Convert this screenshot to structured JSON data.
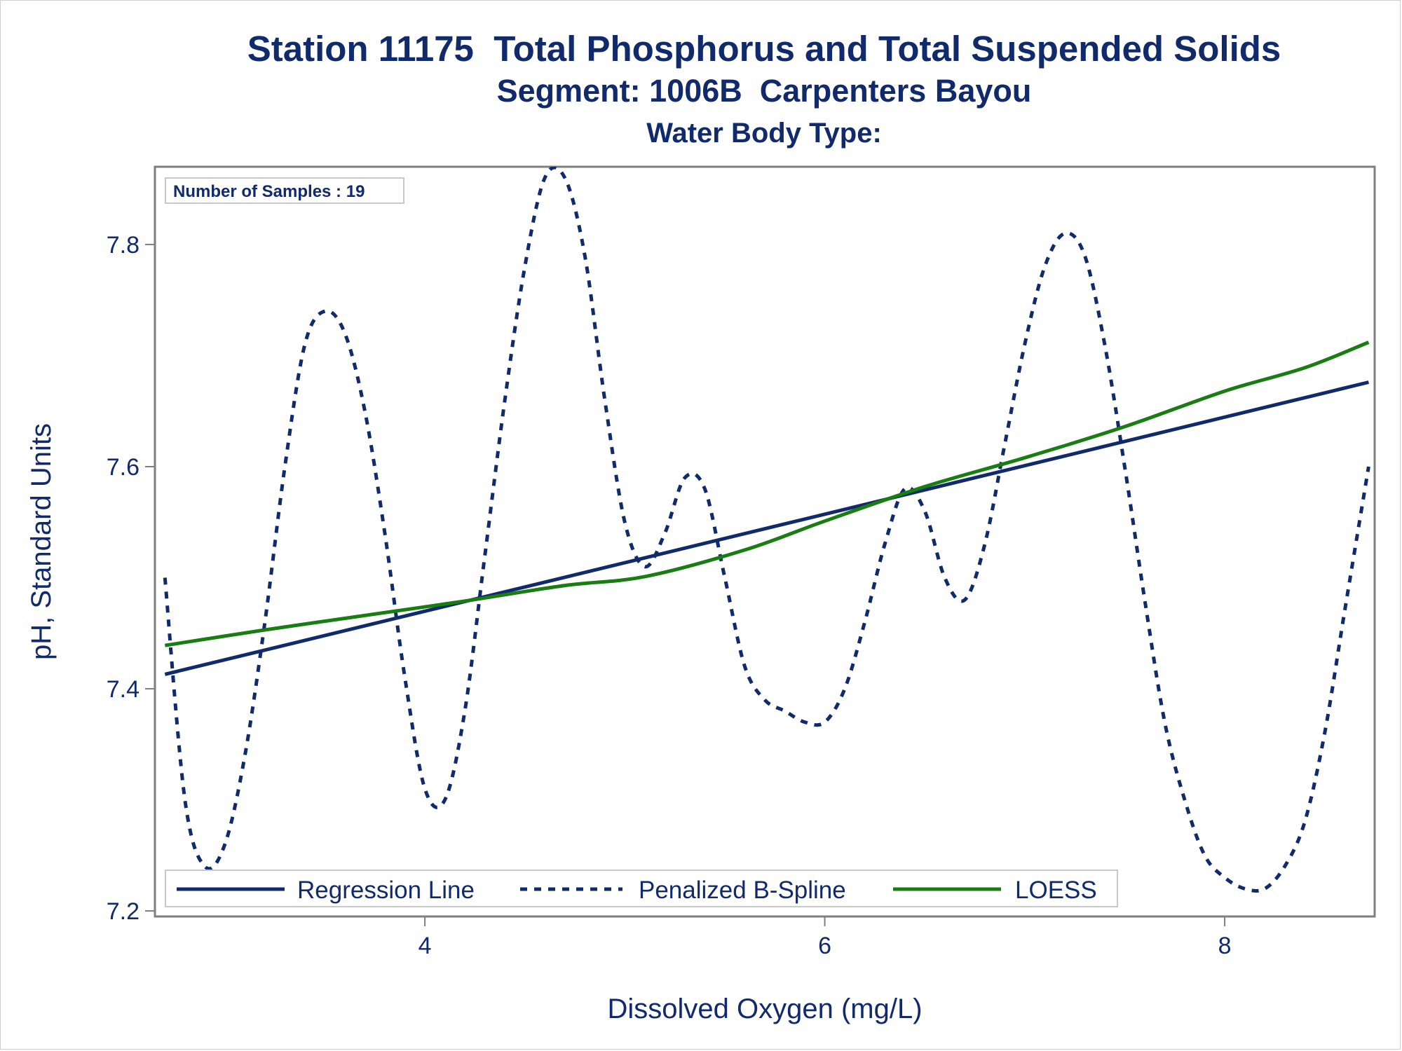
{
  "titles": {
    "line1": "Station 11175  Total Phosphorus and Total Suspended Solids",
    "line2": "Segment: 1006B  Carpenters Bayou",
    "line3": "Water Body Type:"
  },
  "inset": {
    "text": "Number of Samples : 19"
  },
  "colors": {
    "navy": "#112a6b",
    "green": "#1a7d12",
    "axis": "#7f7f7f"
  },
  "chart_data": {
    "type": "line",
    "xlabel": "Dissolved Oxygen (mg/L)",
    "ylabel": "pH, Standard Units",
    "xlim": [
      2.65,
      8.75
    ],
    "ylim": [
      7.195,
      7.87
    ],
    "x_ticks": [
      4,
      6,
      8
    ],
    "x_tick_labels": [
      "4",
      "6",
      "8"
    ],
    "y_ticks": [
      7.2,
      7.4,
      7.6,
      7.8
    ],
    "y_tick_labels": [
      "7.2",
      "7.4",
      "7.6",
      "7.8"
    ],
    "grid": false,
    "legend_position": "bottom-left inside",
    "series": [
      {
        "name": "Regression Line",
        "style": "solid",
        "color": "#112a6b",
        "points": [
          [
            2.7,
            7.413
          ],
          [
            8.72,
            7.676
          ]
        ]
      },
      {
        "name": "Penalized B-Spline",
        "style": "dashed",
        "color": "#112a6b",
        "points": [
          [
            2.7,
            7.5
          ],
          [
            2.8,
            7.3
          ],
          [
            2.9,
            7.24
          ],
          [
            3.0,
            7.26
          ],
          [
            3.1,
            7.34
          ],
          [
            3.2,
            7.46
          ],
          [
            3.3,
            7.6
          ],
          [
            3.4,
            7.71
          ],
          [
            3.5,
            7.74
          ],
          [
            3.6,
            7.72
          ],
          [
            3.7,
            7.65
          ],
          [
            3.8,
            7.54
          ],
          [
            3.9,
            7.41
          ],
          [
            4.0,
            7.31
          ],
          [
            4.1,
            7.3
          ],
          [
            4.2,
            7.38
          ],
          [
            4.3,
            7.52
          ],
          [
            4.4,
            7.66
          ],
          [
            4.5,
            7.78
          ],
          [
            4.6,
            7.86
          ],
          [
            4.7,
            7.86
          ],
          [
            4.8,
            7.79
          ],
          [
            4.9,
            7.66
          ],
          [
            5.0,
            7.55
          ],
          [
            5.1,
            7.51
          ],
          [
            5.2,
            7.54
          ],
          [
            5.3,
            7.59
          ],
          [
            5.4,
            7.58
          ],
          [
            5.5,
            7.5
          ],
          [
            5.6,
            7.42
          ],
          [
            5.7,
            7.39
          ],
          [
            5.8,
            7.38
          ],
          [
            5.9,
            7.37
          ],
          [
            6.0,
            7.37
          ],
          [
            6.1,
            7.4
          ],
          [
            6.2,
            7.46
          ],
          [
            6.3,
            7.53
          ],
          [
            6.4,
            7.58
          ],
          [
            6.5,
            7.56
          ],
          [
            6.6,
            7.5
          ],
          [
            6.7,
            7.48
          ],
          [
            6.8,
            7.53
          ],
          [
            6.9,
            7.62
          ],
          [
            7.0,
            7.71
          ],
          [
            7.1,
            7.78
          ],
          [
            7.2,
            7.81
          ],
          [
            7.3,
            7.79
          ],
          [
            7.4,
            7.71
          ],
          [
            7.5,
            7.6
          ],
          [
            7.6,
            7.48
          ],
          [
            7.7,
            7.37
          ],
          [
            7.8,
            7.3
          ],
          [
            7.9,
            7.25
          ],
          [
            8.0,
            7.23
          ],
          [
            8.1,
            7.22
          ],
          [
            8.2,
            7.22
          ],
          [
            8.3,
            7.24
          ],
          [
            8.4,
            7.28
          ],
          [
            8.5,
            7.36
          ],
          [
            8.6,
            7.47
          ],
          [
            8.72,
            7.6
          ]
        ]
      },
      {
        "name": "LOESS",
        "style": "solid",
        "color": "#1a7d12",
        "points": [
          [
            2.7,
            7.439
          ],
          [
            3.2,
            7.453
          ],
          [
            3.7,
            7.466
          ],
          [
            4.2,
            7.479
          ],
          [
            4.7,
            7.493
          ],
          [
            5.1,
            7.501
          ],
          [
            5.6,
            7.525
          ],
          [
            6.0,
            7.551
          ],
          [
            6.5,
            7.582
          ],
          [
            7.0,
            7.608
          ],
          [
            7.5,
            7.636
          ],
          [
            8.0,
            7.668
          ],
          [
            8.4,
            7.689
          ],
          [
            8.72,
            7.712
          ]
        ]
      }
    ]
  }
}
